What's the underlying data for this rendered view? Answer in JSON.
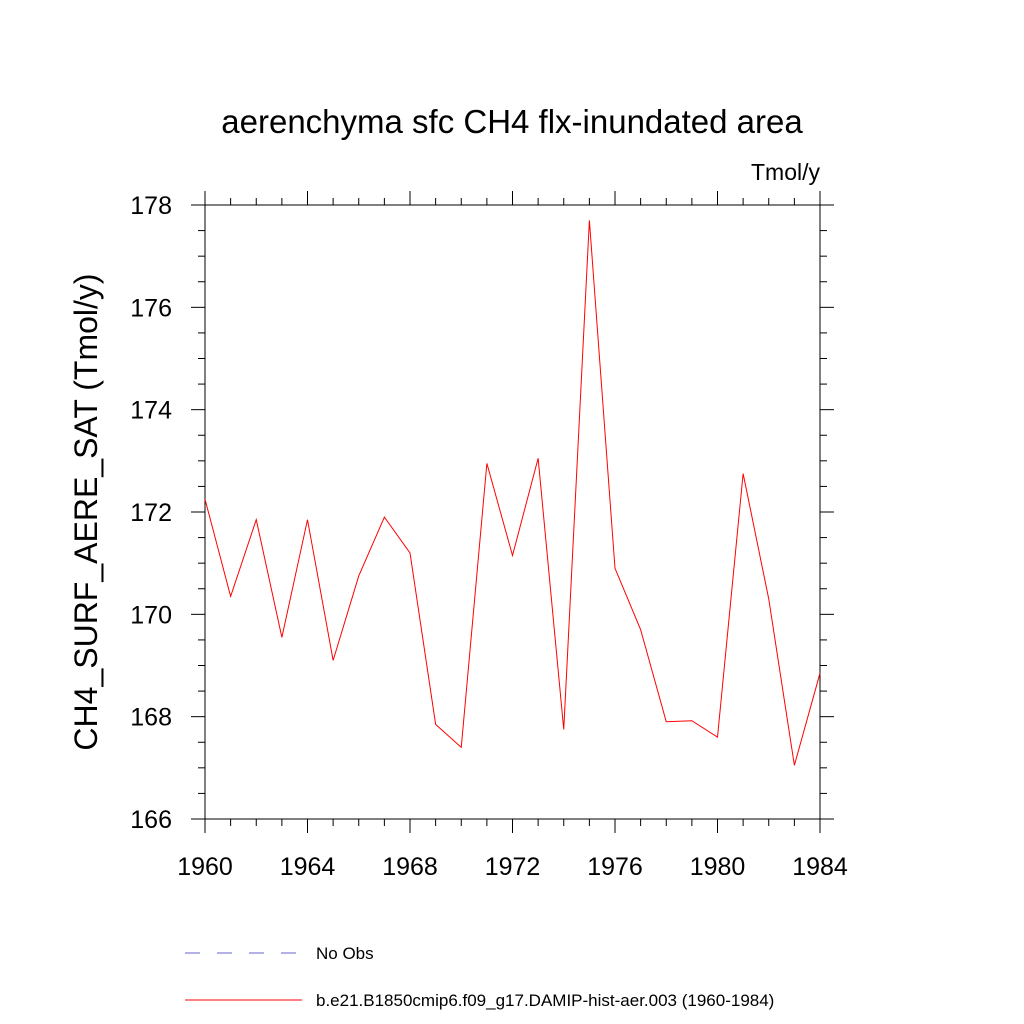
{
  "chart_data": {
    "type": "line",
    "title": "aerenchyma sfc CH4 flx-inundated area",
    "units": "Tmol/y",
    "ylabel": "CH4_SURF_AERE_SAT  (Tmol/y)",
    "xlabel": "",
    "xlim": [
      1960,
      1984
    ],
    "ylim": [
      166,
      178
    ],
    "x_ticks": [
      "1960",
      "1964",
      "1968",
      "1972",
      "1976",
      "1980",
      "1984"
    ],
    "y_ticks": [
      "166",
      "168",
      "170",
      "172",
      "174",
      "176",
      "178"
    ],
    "x": [
      1960,
      1961,
      1962,
      1963,
      1964,
      1965,
      1966,
      1967,
      1968,
      1969,
      1970,
      1971,
      1972,
      1973,
      1974,
      1975,
      1976,
      1977,
      1978,
      1979,
      1980,
      1981,
      1982,
      1983,
      1984
    ],
    "series": [
      {
        "name": "b.e21.B1850cmip6.f09_g17.DAMIP-hist-aer.003 (1960-1984)",
        "color": "#ff0000",
        "values": [
          172.25,
          170.35,
          171.85,
          169.55,
          171.85,
          169.1,
          170.75,
          171.9,
          171.2,
          167.85,
          167.4,
          172.95,
          171.15,
          173.05,
          167.75,
          177.7,
          170.9,
          169.7,
          167.9,
          167.92,
          167.6,
          172.75,
          170.3,
          167.05,
          168.85
        ]
      }
    ],
    "legend": {
      "placement": "bottom",
      "entries": [
        {
          "label": "No Obs",
          "color": "#6666cc",
          "style": "dashed"
        },
        {
          "label": "b.e21.B1850cmip6.f09_g17.DAMIP-hist-aer.003 (1960-1984)",
          "color": "#ff0000",
          "style": "solid"
        }
      ]
    }
  }
}
